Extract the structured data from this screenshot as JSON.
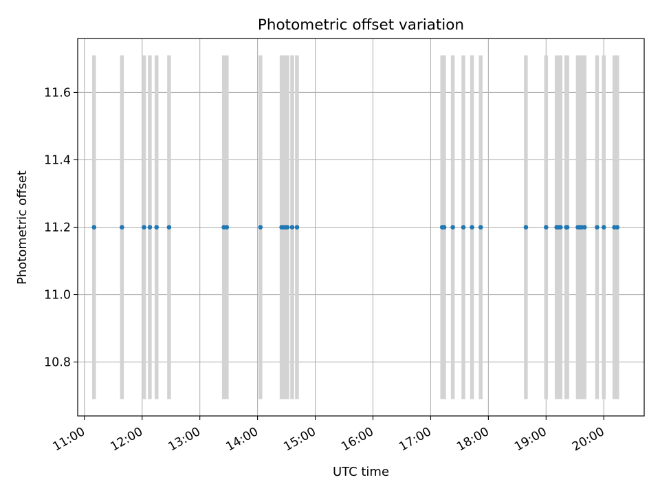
{
  "chart_data": {
    "type": "scatter",
    "title": "Photometric offset variation",
    "xlabel": "UTC time",
    "ylabel": "Photometric offset",
    "xlim": [
      "10:53",
      "20:42"
    ],
    "ylim": [
      10.64,
      11.76
    ],
    "x_ticks": [
      "11:00",
      "12:00",
      "13:00",
      "14:00",
      "15:00",
      "16:00",
      "17:00",
      "18:00",
      "19:00",
      "20:00"
    ],
    "y_ticks": [
      10.8,
      11.0,
      11.2,
      11.4,
      11.6
    ],
    "y_tick_labels": [
      "10.8",
      "11.0",
      "11.2",
      "11.4",
      "11.6"
    ],
    "grid": true,
    "colors": {
      "points": "#1f77b4",
      "error_bars": "#d3d3d3",
      "grid": "#b0b0b0"
    },
    "error_bar_range": [
      10.69,
      11.71
    ],
    "series": [
      {
        "x": [
          "11:10",
          "11:39",
          "12:02",
          "12:08",
          "12:15",
          "12:28",
          "13:25",
          "13:28",
          "14:03",
          "14:25",
          "14:27",
          "14:29",
          "14:31",
          "14:36",
          "14:41",
          "17:12",
          "17:14",
          "17:23",
          "17:34",
          "17:43",
          "17:52",
          "18:39",
          "19:00",
          "19:11",
          "19:13",
          "19:15",
          "19:21",
          "19:22",
          "19:33",
          "19:35",
          "19:37",
          "19:40",
          "19:53",
          "20:00",
          "20:11",
          "20:14"
        ],
        "y": [
          11.2,
          11.2,
          11.2,
          11.2,
          11.2,
          11.2,
          11.2,
          11.2,
          11.2,
          11.2,
          11.2,
          11.2,
          11.2,
          11.2,
          11.2,
          11.2,
          11.2,
          11.2,
          11.2,
          11.2,
          11.2,
          11.2,
          11.2,
          11.2,
          11.2,
          11.2,
          11.2,
          11.2,
          11.2,
          11.2,
          11.2,
          11.2,
          11.2,
          11.2,
          11.2,
          11.2
        ],
        "error_low": 10.69,
        "error_high": 11.71
      }
    ]
  }
}
